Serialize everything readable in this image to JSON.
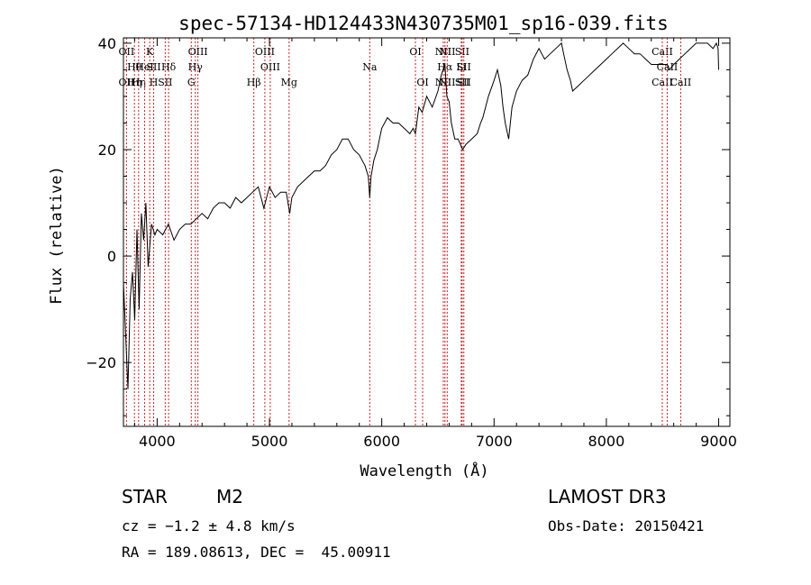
{
  "chart_data": {
    "type": "line",
    "title": "spec-57134-HD124433N430735M01_sp16-039.fits",
    "xlabel": "Wavelength (Å)",
    "ylabel": "Flux (relative)",
    "xlim": [
      3700,
      9100
    ],
    "ylim": [
      -32,
      41
    ],
    "x_ticks": [
      4000,
      5000,
      6000,
      7000,
      8000,
      9000
    ],
    "y_ticks": [
      -20,
      0,
      20,
      40
    ],
    "grid": false,
    "series": [
      {
        "name": "flux",
        "x": [
          3700,
          3720,
          3740,
          3760,
          3780,
          3800,
          3820,
          3840,
          3860,
          3880,
          3900,
          3920,
          3950,
          3980,
          4000,
          4050,
          4100,
          4150,
          4200,
          4250,
          4300,
          4350,
          4400,
          4450,
          4500,
          4550,
          4600,
          4650,
          4700,
          4750,
          4800,
          4850,
          4900,
          4950,
          5000,
          5050,
          5100,
          5150,
          5180,
          5200,
          5250,
          5300,
          5350,
          5400,
          5450,
          5500,
          5550,
          5600,
          5650,
          5700,
          5750,
          5800,
          5850,
          5880,
          5893,
          5905,
          5930,
          5960,
          6000,
          6050,
          6100,
          6150,
          6200,
          6250,
          6280,
          6300,
          6330,
          6360,
          6400,
          6450,
          6500,
          6530,
          6563,
          6580,
          6600,
          6620,
          6650,
          6680,
          6700,
          6720,
          6750,
          6800,
          6850,
          6880,
          6900,
          6950,
          7000,
          7030,
          7060,
          7080,
          7100,
          7130,
          7160,
          7200,
          7250,
          7300,
          7350,
          7400,
          7450,
          7500,
          7550,
          7600,
          7620,
          7650,
          7680,
          7700,
          7750,
          7800,
          7850,
          7900,
          7950,
          8000,
          8050,
          8100,
          8150,
          8200,
          8250,
          8300,
          8350,
          8400,
          8450,
          8500,
          8542,
          8560,
          8600,
          8650,
          8700,
          8750,
          8800,
          8850,
          8900,
          8950,
          8980,
          8995,
          9000
        ],
        "y": [
          -5,
          -15,
          -25,
          -8,
          -3,
          -12,
          5,
          -10,
          8,
          3,
          10,
          -2,
          6,
          4,
          5,
          4,
          6,
          3,
          5,
          6,
          6,
          7,
          8,
          7,
          9,
          10,
          10,
          9,
          11,
          10,
          11,
          12,
          13,
          9,
          13,
          11,
          12,
          12,
          8,
          11,
          13,
          14,
          15,
          16,
          16,
          17,
          19,
          20,
          22,
          22,
          20,
          19,
          17,
          15,
          11,
          15,
          18,
          20,
          24,
          26,
          25,
          25,
          24,
          23,
          24,
          23,
          28,
          27,
          30,
          28,
          31,
          34,
          36,
          30,
          29,
          25,
          22,
          22,
          21,
          20,
          21,
          22,
          23,
          25,
          26,
          30,
          33,
          35,
          32,
          28,
          25,
          22,
          28,
          31,
          33,
          34,
          37,
          39,
          37,
          38,
          39,
          40,
          38,
          35,
          33,
          31,
          32,
          33,
          34,
          35,
          36,
          37,
          38,
          39,
          40,
          39,
          38,
          38,
          37,
          36,
          36,
          36,
          36,
          35,
          36,
          37,
          38,
          39,
          40,
          40,
          40,
          39,
          40,
          39,
          35
        ]
      }
    ],
    "line_markers": [
      {
        "x": 3727,
        "top": "OII",
        "bottom": "OII"
      },
      {
        "x": 3798,
        "top": "Hθ",
        "bottom": "Hη"
      },
      {
        "x": 3835,
        "top": "",
        "bottom": "Hη"
      },
      {
        "x": 3889,
        "top": "HeI",
        "bottom": ""
      },
      {
        "x": 3934,
        "top": "K",
        "bottom": ""
      },
      {
        "x": 3969,
        "top": "SII",
        "bottom": "H"
      },
      {
        "x": 4072,
        "top": "",
        "bottom": "SII"
      },
      {
        "x": 4102,
        "top": "Hδ",
        "bottom": ""
      },
      {
        "x": 4304,
        "top": "",
        "bottom": "G"
      },
      {
        "x": 4340,
        "top": "Hγ",
        "bottom": ""
      },
      {
        "x": 4363,
        "top": "OIII",
        "bottom": ""
      },
      {
        "x": 4861,
        "top": "",
        "bottom": "Hβ"
      },
      {
        "x": 4959,
        "top": "OIII",
        "bottom": ""
      },
      {
        "x": 5007,
        "top": "OIII",
        "bottom": ""
      },
      {
        "x": 5175,
        "top": "",
        "bottom": "Mg"
      },
      {
        "x": 5893,
        "top": "Na",
        "bottom": ""
      },
      {
        "x": 6300,
        "top": "OI",
        "bottom": ""
      },
      {
        "x": 6364,
        "top": "",
        "bottom": "OI"
      },
      {
        "x": 6548,
        "top": "NII",
        "bottom": "NII"
      },
      {
        "x": 6563,
        "top": "Hα",
        "bottom": ""
      },
      {
        "x": 6583,
        "top": "NII",
        "bottom": "NII"
      },
      {
        "x": 6708,
        "top": "Li",
        "bottom": ""
      },
      {
        "x": 6716,
        "top": "SII",
        "bottom": "SII"
      },
      {
        "x": 6731,
        "top": "SII",
        "bottom": "SII"
      },
      {
        "x": 8498,
        "top": "CaII",
        "bottom": "CaII"
      },
      {
        "x": 8542,
        "top": "CaII",
        "bottom": ""
      },
      {
        "x": 8662,
        "top": "",
        "bottom": "CaII"
      }
    ]
  },
  "object_info": {
    "class": "STAR",
    "subclass": "M2",
    "cz": "cz = −1.2 ± 4.8 km/s",
    "coords": "RA = 189.08613, DEC =  45.00911",
    "survey": "LAMOST DR3",
    "obs_date": "Obs-Date: 20150421"
  },
  "colors": {
    "spectrum": "#000000",
    "line_markers": "#cc2222",
    "axes": "#000000"
  }
}
